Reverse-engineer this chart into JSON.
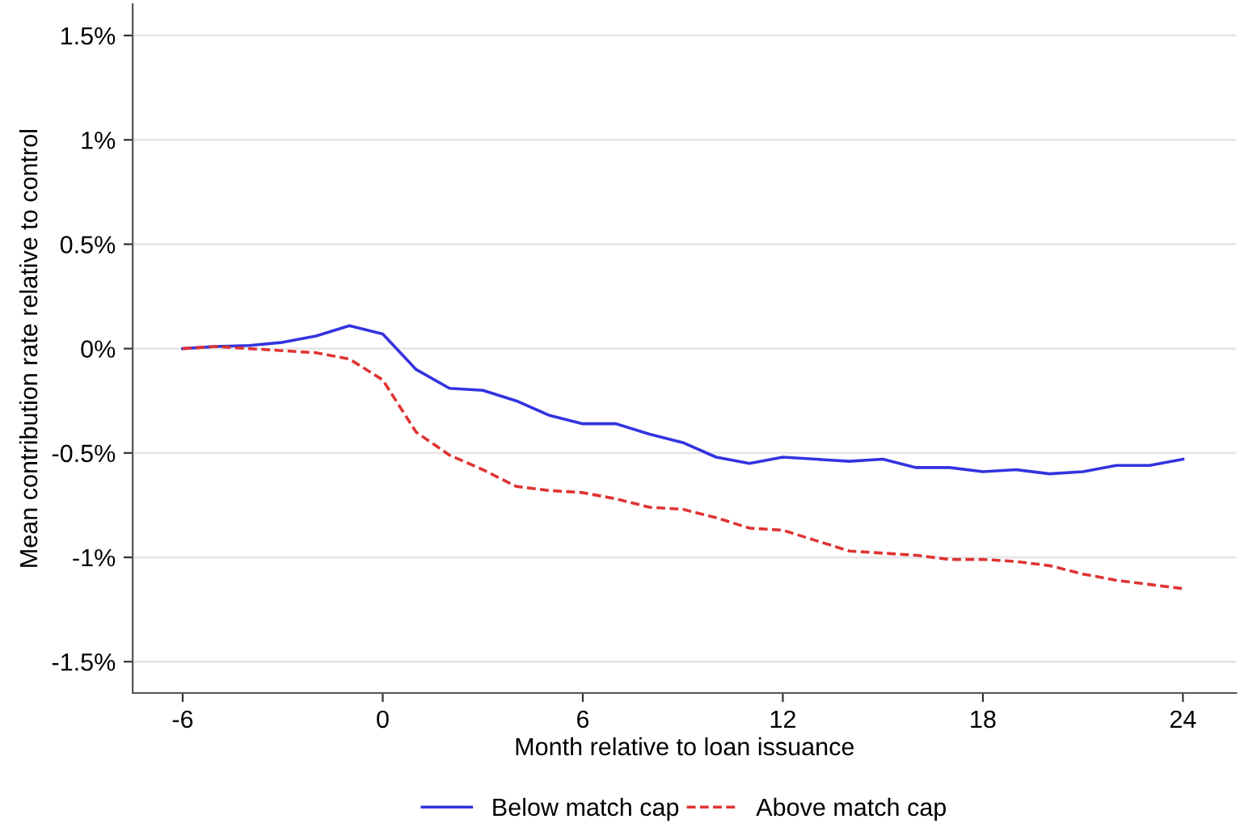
{
  "chart_data": {
    "type": "line",
    "xlabel": "Month relative to loan issuance",
    "ylabel": "Mean contribution rate relative to control",
    "x": [
      -6,
      -5,
      -4,
      -3,
      -2,
      -1,
      0,
      1,
      2,
      3,
      4,
      5,
      6,
      7,
      8,
      9,
      10,
      11,
      12,
      13,
      14,
      15,
      16,
      17,
      18,
      19,
      20,
      21,
      22,
      23,
      24
    ],
    "series": [
      {
        "name": "Below match cap",
        "color": "#3333e0",
        "line_style": "solid",
        "values": [
          0,
          0.01,
          0.015,
          0.03,
          0.06,
          0.11,
          0.07,
          -0.1,
          -0.19,
          -0.2,
          -0.25,
          -0.32,
          -0.36,
          -0.36,
          -0.41,
          -0.45,
          -0.52,
          -0.55,
          -0.52,
          -0.53,
          -0.54,
          -0.53,
          -0.57,
          -0.57,
          -0.59,
          -0.58,
          -0.6,
          -0.59,
          -0.56,
          -0.56,
          -0.53
        ]
      },
      {
        "name": "Above match cap",
        "color": "#e03333",
        "line_style": "dashed",
        "values": [
          0,
          0.01,
          0,
          -0.01,
          -0.02,
          -0.05,
          -0.15,
          -0.4,
          -0.51,
          -0.58,
          -0.66,
          -0.68,
          -0.69,
          -0.72,
          -0.76,
          -0.77,
          -0.81,
          -0.86,
          -0.87,
          -0.92,
          -0.97,
          -0.98,
          -0.99,
          -1.01,
          -1.01,
          -1.02,
          -1.04,
          -1.08,
          -1.11,
          -1.13,
          -1.15
        ]
      }
    ],
    "xlim": [
      -7.5,
      25.6
    ],
    "xticks": [
      -6,
      0,
      6,
      12,
      18,
      24
    ],
    "ylim": [
      -1.65,
      1.65
    ],
    "yticks": [
      {
        "value": -1.5,
        "label": "-1.5%"
      },
      {
        "value": -1,
        "label": "-1%"
      },
      {
        "value": -0.5,
        "label": "-0.5%"
      },
      {
        "value": 0,
        "label": "0%"
      },
      {
        "value": 0.5,
        "label": "0.5%"
      },
      {
        "value": 1,
        "label": "1%"
      },
      {
        "value": 1.5,
        "label": "1.5%"
      }
    ],
    "grid": "y",
    "legend": "bottom",
    "marker": "none"
  }
}
